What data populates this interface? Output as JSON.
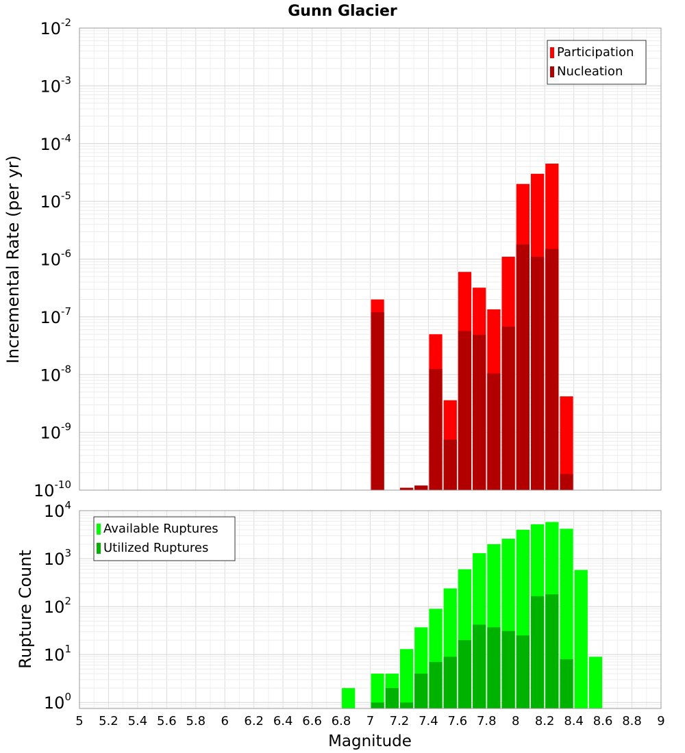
{
  "chart_data": [
    {
      "type": "bar",
      "title": "Gunn Glacier",
      "xlabel": "",
      "ylabel": "Incremental Rate (per yr)",
      "yscale": "log",
      "ylim": [
        1e-10,
        0.01
      ],
      "xlim": [
        5,
        9
      ],
      "grid": true,
      "legend_position": "top-right",
      "y_ticks": [
        {
          "base": "10",
          "exp": "-2",
          "value": 0.01
        },
        {
          "base": "10",
          "exp": "-3",
          "value": 0.001
        },
        {
          "base": "10",
          "exp": "-4",
          "value": 0.0001
        },
        {
          "base": "10",
          "exp": "-5",
          "value": 1e-05
        },
        {
          "base": "10",
          "exp": "-6",
          "value": 1e-06
        },
        {
          "base": "10",
          "exp": "-7",
          "value": 1e-07
        },
        {
          "base": "10",
          "exp": "-8",
          "value": 1e-08
        },
        {
          "base": "10",
          "exp": "-9",
          "value": 1e-09
        },
        {
          "base": "10",
          "exp": "-10",
          "value": 1e-10
        }
      ],
      "series": [
        {
          "name": "Participation",
          "color": "#ff0000",
          "points": [
            {
              "x": 7.05,
              "y": 2e-07
            },
            {
              "x": 7.25,
              "y": 1.1e-10
            },
            {
              "x": 7.35,
              "y": 1.2e-10
            },
            {
              "x": 7.45,
              "y": 5e-08
            },
            {
              "x": 7.55,
              "y": 3.6e-09
            },
            {
              "x": 7.65,
              "y": 6e-07
            },
            {
              "x": 7.75,
              "y": 3.2e-07
            },
            {
              "x": 7.85,
              "y": 1.35e-07
            },
            {
              "x": 7.95,
              "y": 1.1e-06
            },
            {
              "x": 8.05,
              "y": 2e-05
            },
            {
              "x": 8.15,
              "y": 3e-05
            },
            {
              "x": 8.25,
              "y": 4.5e-05
            },
            {
              "x": 8.35,
              "y": 4.2e-09
            }
          ]
        },
        {
          "name": "Nucleation",
          "color": "#b20000",
          "points": [
            {
              "x": 7.05,
              "y": 1.2e-07
            },
            {
              "x": 7.25,
              "y": 1.1e-10
            },
            {
              "x": 7.35,
              "y": 1.2e-10
            },
            {
              "x": 7.45,
              "y": 1.25e-08
            },
            {
              "x": 7.55,
              "y": 7.5e-10
            },
            {
              "x": 7.65,
              "y": 5.7e-08
            },
            {
              "x": 7.75,
              "y": 4.9e-08
            },
            {
              "x": 7.85,
              "y": 1.05e-08
            },
            {
              "x": 7.95,
              "y": 6.8e-08
            },
            {
              "x": 8.05,
              "y": 1.8e-06
            },
            {
              "x": 8.15,
              "y": 1.1e-06
            },
            {
              "x": 8.25,
              "y": 1.5e-06
            },
            {
              "x": 8.35,
              "y": 1.9e-10
            }
          ]
        }
      ]
    },
    {
      "type": "bar",
      "title": "",
      "xlabel": "Magnitude",
      "ylabel": "Rupture Count",
      "yscale": "log",
      "ylim": [
        0.75,
        10000
      ],
      "xlim": [
        5,
        9
      ],
      "grid": true,
      "legend_position": "top-left",
      "x_ticks": [
        "5",
        "5.2",
        "5.4",
        "5.6",
        "5.8",
        "6",
        "6.2",
        "6.4",
        "6.6",
        "6.8",
        "7",
        "7.2",
        "7.4",
        "7.6",
        "7.8",
        "8",
        "8.2",
        "8.4",
        "8.6",
        "8.8",
        "9"
      ],
      "y_ticks": [
        {
          "base": "10",
          "exp": "4",
          "value": 10000
        },
        {
          "base": "10",
          "exp": "3",
          "value": 1000
        },
        {
          "base": "10",
          "exp": "2",
          "value": 100
        },
        {
          "base": "10",
          "exp": "1",
          "value": 10
        },
        {
          "base": "10",
          "exp": "0",
          "value": 1
        }
      ],
      "series": [
        {
          "name": "Available Ruptures",
          "color": "#00ff00",
          "points": [
            {
              "x": 6.85,
              "y": 2
            },
            {
              "x": 7.05,
              "y": 4
            },
            {
              "x": 7.15,
              "y": 4
            },
            {
              "x": 7.25,
              "y": 13
            },
            {
              "x": 7.35,
              "y": 37
            },
            {
              "x": 7.45,
              "y": 90
            },
            {
              "x": 7.55,
              "y": 240
            },
            {
              "x": 7.65,
              "y": 600
            },
            {
              "x": 7.75,
              "y": 1300
            },
            {
              "x": 7.85,
              "y": 2000
            },
            {
              "x": 7.95,
              "y": 2600
            },
            {
              "x": 8.05,
              "y": 4000
            },
            {
              "x": 8.15,
              "y": 5200
            },
            {
              "x": 8.25,
              "y": 5800
            },
            {
              "x": 8.35,
              "y": 4200
            },
            {
              "x": 8.45,
              "y": 580
            },
            {
              "x": 8.55,
              "y": 9
            }
          ]
        },
        {
          "name": "Utilized Ruptures",
          "color": "#00b200",
          "points": [
            {
              "x": 7.05,
              "y": 1
            },
            {
              "x": 7.15,
              "y": 2
            },
            {
              "x": 7.25,
              "y": 1
            },
            {
              "x": 7.35,
              "y": 4
            },
            {
              "x": 7.45,
              "y": 7
            },
            {
              "x": 7.55,
              "y": 9
            },
            {
              "x": 7.65,
              "y": 20
            },
            {
              "x": 7.75,
              "y": 42
            },
            {
              "x": 7.85,
              "y": 37
            },
            {
              "x": 7.95,
              "y": 31
            },
            {
              "x": 8.05,
              "y": 25
            },
            {
              "x": 8.15,
              "y": 165
            },
            {
              "x": 8.25,
              "y": 180
            },
            {
              "x": 8.35,
              "y": 8
            }
          ]
        }
      ]
    }
  ]
}
